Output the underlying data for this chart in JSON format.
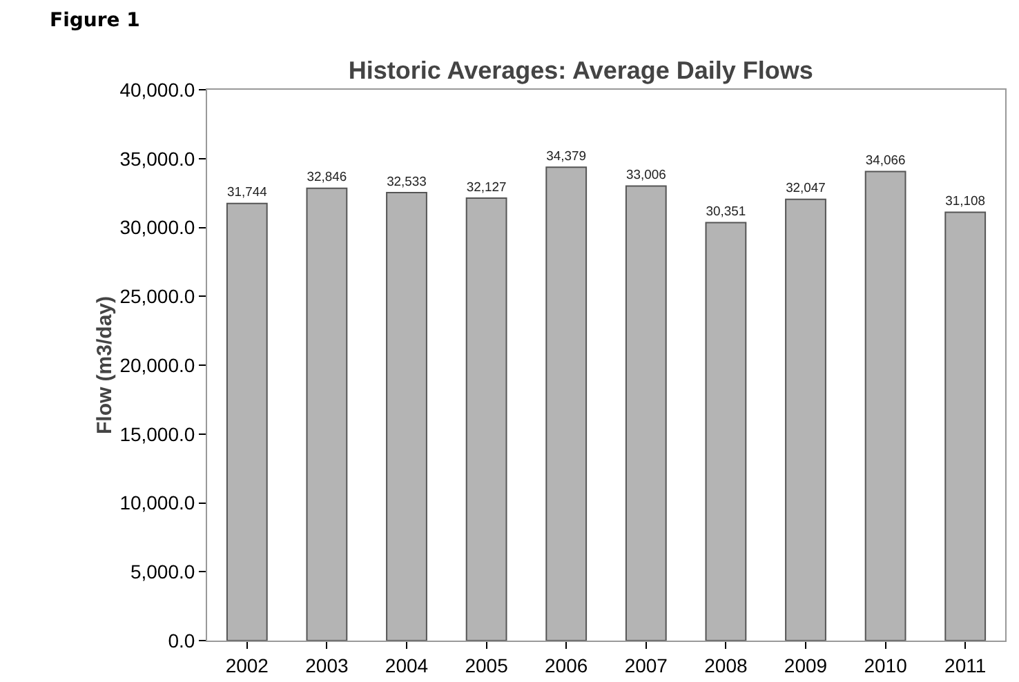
{
  "chart_data": {
    "type": "bar",
    "title": "Historic Averages: Average Daily Flows",
    "ylabel": "Flow (m3/day)",
    "annotations": [
      "Figure 1"
    ],
    "categories": [
      "2002",
      "2003",
      "2004",
      "2005",
      "2006",
      "2007",
      "2008",
      "2009",
      "2010",
      "2011"
    ],
    "values": [
      31744,
      32846,
      32533,
      32127,
      34379,
      33006,
      30351,
      32047,
      34066,
      31108
    ],
    "value_labels": [
      "31,744",
      "32,846",
      "32,533",
      "32,127",
      "34,379",
      "33,006",
      "30,351",
      "32,047",
      "34,066",
      "31,108"
    ],
    "color": "#b4b4b4",
    "ylim": [
      0,
      40000
    ],
    "yticks": [
      {
        "value": 0,
        "label": "0.0"
      },
      {
        "value": 5000,
        "label": "5,000.0"
      },
      {
        "value": 10000,
        "label": "10,000.0"
      },
      {
        "value": 15000,
        "label": "15,000.0"
      },
      {
        "value": 20000,
        "label": "20,000.0"
      },
      {
        "value": 25000,
        "label": "25,000.0"
      },
      {
        "value": 30000,
        "label": "30,000.0"
      },
      {
        "value": 35000,
        "label": "35,000.0"
      },
      {
        "value": 40000,
        "label": "40,000.0"
      }
    ],
    "grid": false,
    "legend": false
  }
}
